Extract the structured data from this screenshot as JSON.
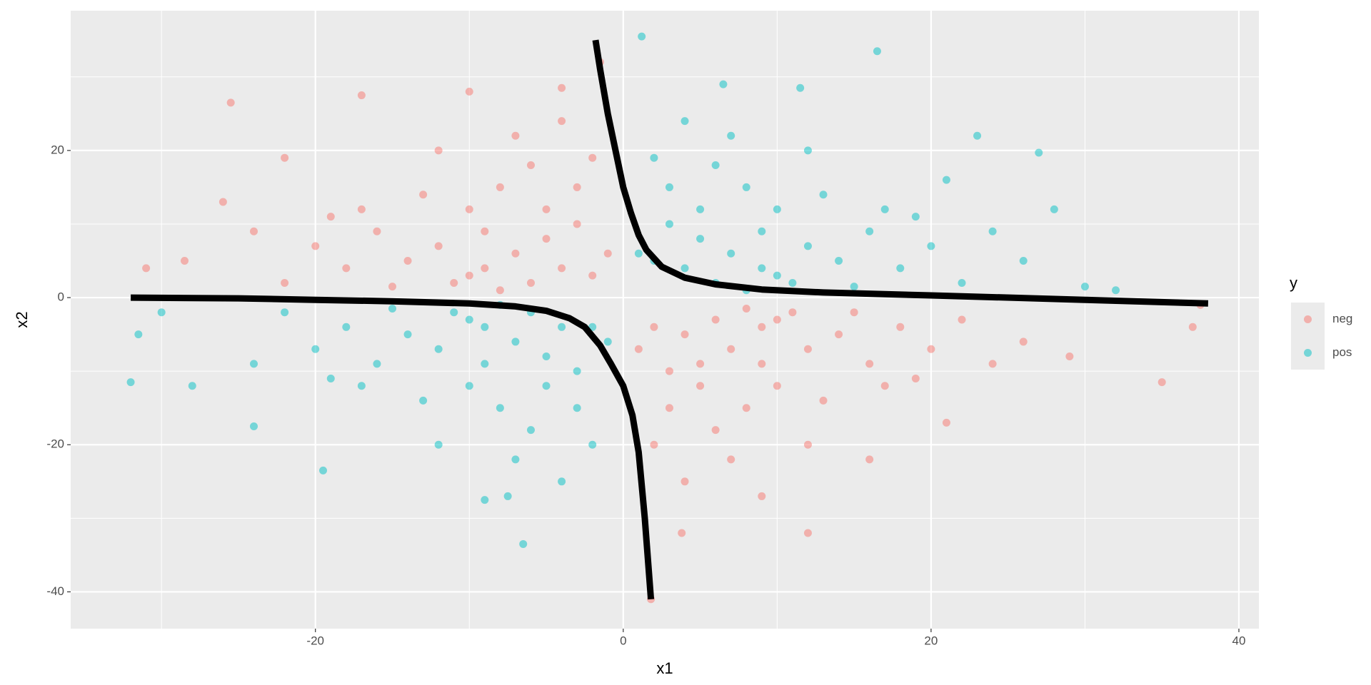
{
  "chart_data": {
    "type": "scatter",
    "x_label": "x1",
    "y_label": "x2",
    "legend_title": "y",
    "legend_position": "right",
    "grid": true,
    "xlim": [
      -35.9,
      41.3
    ],
    "ylim": [
      -45,
      39
    ],
    "xticks": [
      -20,
      0,
      20,
      40
    ],
    "yticks": [
      -40,
      -20,
      0,
      20
    ],
    "xminor": [
      -30,
      -10,
      10,
      30
    ],
    "yminor": [
      -30,
      -10,
      10,
      30
    ],
    "series": [
      {
        "name": "neg",
        "color": "#F8766D",
        "x": [
          -25.5,
          -17,
          -10,
          -4,
          -1.5,
          37.5,
          35,
          37,
          12,
          1.8,
          3.8,
          29,
          -28.5,
          -31,
          -26,
          -22,
          -7,
          -5,
          -9,
          -3,
          -12,
          -6,
          -4,
          -10,
          -14,
          -8,
          -2,
          -16,
          -11,
          -18,
          -20,
          -13,
          -6,
          -3,
          -1,
          -9,
          -15,
          -22,
          -24,
          -7,
          -12,
          -17,
          -2,
          -5,
          -8,
          -19,
          -4,
          -10,
          7,
          5,
          9,
          3,
          12,
          6,
          4,
          10,
          14,
          8,
          2,
          16,
          11,
          18,
          20,
          13,
          6,
          3,
          1,
          9,
          15,
          22,
          24,
          7,
          12,
          17,
          2,
          5,
          8,
          19,
          4,
          10,
          26,
          21,
          16,
          9
        ],
        "values": [
          26.5,
          27.5,
          28,
          28.5,
          32,
          -1,
          -11.5,
          -4,
          -32,
          -41,
          -32,
          -8,
          5,
          4,
          13,
          19,
          6,
          8,
          4,
          10,
          7,
          2,
          4,
          12,
          5,
          15,
          3,
          9,
          2,
          4,
          7,
          14,
          18,
          15,
          6,
          9,
          1.5,
          2,
          9,
          22,
          20,
          12,
          19,
          12,
          1,
          11,
          24,
          3,
          -7,
          -9,
          -4,
          -10,
          -7,
          -3,
          -5,
          -12,
          -5,
          -15,
          -4,
          -9,
          -2,
          -4,
          -7,
          -14,
          -18,
          -15,
          -7,
          -9,
          -2,
          -3,
          -9,
          -22,
          -20,
          -12,
          -20,
          -12,
          -1.5,
          -11,
          -25,
          -3,
          -6,
          -17,
          -22,
          -27
        ]
      },
      {
        "name": "pos",
        "color": "#00BFC4",
        "x": [
          -32,
          -31.5,
          -30,
          -28,
          -6.5,
          1.2,
          16.5,
          6.5,
          11.5,
          32,
          30,
          27,
          -24,
          -19.5,
          -9,
          -7.5,
          7,
          5,
          9,
          3,
          12,
          6,
          4,
          10,
          14,
          8,
          2,
          16,
          11,
          18,
          20,
          13,
          6,
          3,
          1,
          9,
          15,
          22,
          24,
          7,
          12,
          17,
          2,
          5,
          8,
          19,
          4,
          10,
          26,
          21,
          23,
          28,
          -7,
          -5,
          -9,
          -3,
          -12,
          -6,
          -4,
          -10,
          -14,
          -8,
          -2,
          -16,
          -11,
          -18,
          -20,
          -13,
          -6,
          -3,
          -1,
          -9,
          -15,
          -22,
          -24,
          -7,
          -12,
          -17,
          -2,
          -5,
          -8,
          -19,
          -4,
          -10
        ],
        "values": [
          -11.5,
          -5,
          -2,
          -12,
          -33.5,
          35.5,
          33.5,
          29,
          28.5,
          1,
          1.5,
          19.7,
          -17.5,
          -23.5,
          -27.5,
          -27,
          6,
          8,
          4,
          10,
          7,
          2,
          4,
          12,
          5,
          15,
          5,
          9,
          2,
          4,
          7,
          14,
          18,
          15,
          6,
          9,
          1.5,
          2,
          9,
          22,
          20,
          12,
          19,
          12,
          1,
          11,
          24,
          3,
          5,
          16,
          22,
          12,
          -6,
          -8,
          -4,
          -10,
          -7,
          -2,
          -4,
          -12,
          -5,
          -15,
          -4,
          -9,
          -2,
          -4,
          -7,
          -14,
          -18,
          -15,
          -6,
          -9,
          -1.5,
          -2,
          -9,
          -22,
          -20,
          -12,
          -20,
          -12,
          -1,
          -11,
          -25,
          -3
        ]
      }
    ],
    "boundary": {
      "color": "#000000",
      "x": [
        -32,
        -25,
        -20,
        -15,
        -10,
        -7,
        -5,
        -3.5,
        -2.5,
        -1.5,
        -0.8,
        0,
        0.6,
        1,
        1.4,
        1.8,
        null,
        -1.8,
        -1.5,
        -1,
        -0.5,
        0,
        0.5,
        1,
        1.5,
        2.5,
        4,
        6,
        9,
        13,
        20,
        30,
        38
      ],
      "y": [
        0,
        -0.1,
        -0.3,
        -0.5,
        -0.8,
        -1.2,
        -1.8,
        -2.8,
        -4,
        -6.5,
        -9,
        -12,
        -16,
        -21,
        -30,
        -41,
        null,
        35,
        31,
        25,
        20,
        15,
        11.5,
        8.5,
        6.5,
        4.2,
        2.7,
        1.8,
        1.1,
        0.7,
        0.3,
        -0.3,
        -0.8
      ]
    }
  }
}
